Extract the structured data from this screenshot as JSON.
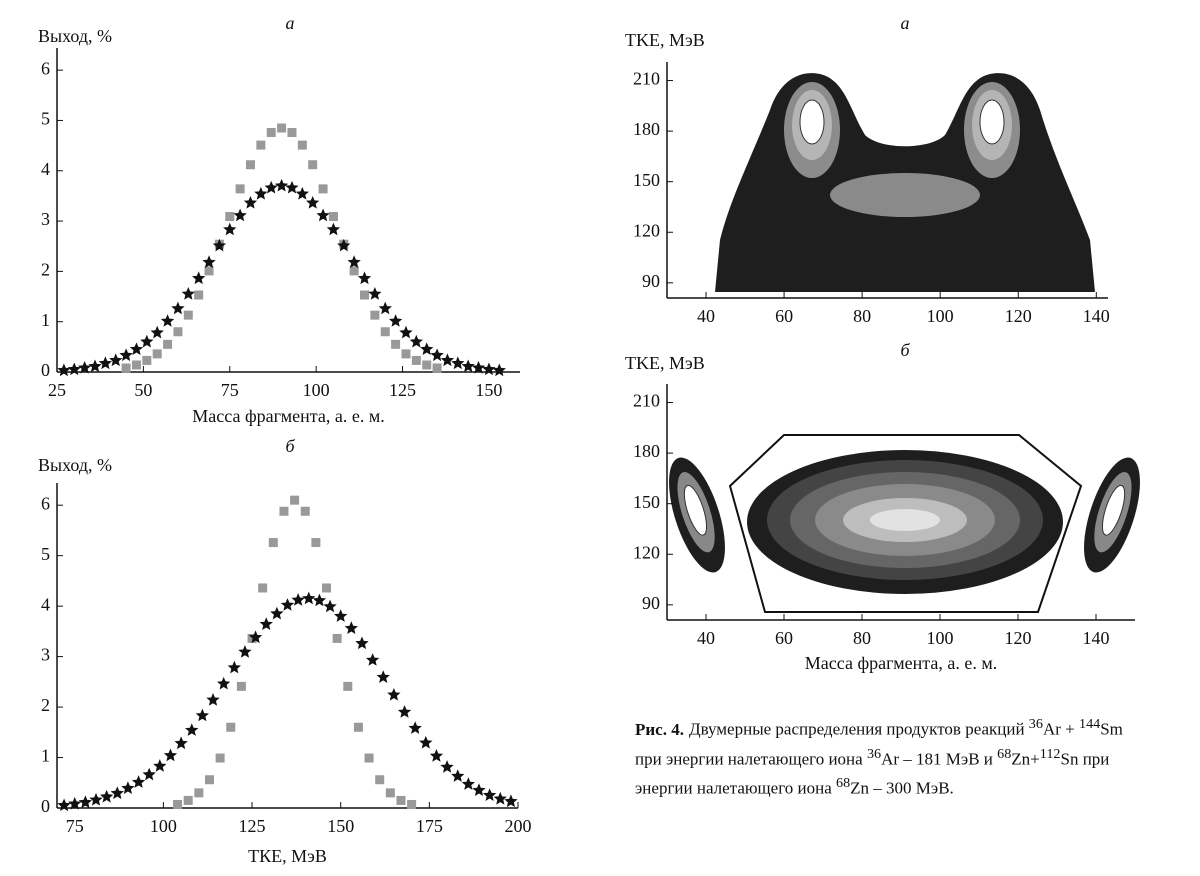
{
  "chart_data": [
    {
      "type": "scatter",
      "title": "а",
      "ylabel": "Выход, %",
      "xlabel": "Масса фрагмента, а. е. м.",
      "xlim": [
        25,
        159
      ],
      "ylim": [
        0,
        6.44
      ],
      "xticks": [
        25,
        50,
        75,
        100,
        125,
        150
      ],
      "yticks": [
        0,
        1,
        2,
        3,
        4,
        5,
        6
      ],
      "series": [
        {
          "marker": "square",
          "color": "#999999",
          "x": [
            45,
            48,
            51,
            54,
            57,
            60,
            63,
            66,
            69,
            72,
            75,
            78,
            81,
            84,
            87,
            90,
            93,
            96,
            99,
            102,
            105,
            108,
            111,
            114,
            117,
            120,
            123,
            126,
            129,
            132,
            135
          ],
          "values": [
            0.08,
            0.14,
            0.23,
            0.36,
            0.55,
            0.8,
            1.13,
            1.53,
            2.01,
            2.54,
            3.09,
            3.64,
            4.12,
            4.51,
            4.76,
            4.85,
            4.76,
            4.51,
            4.12,
            3.64,
            3.09,
            2.54,
            2.01,
            1.53,
            1.13,
            0.8,
            0.55,
            0.36,
            0.23,
            0.14,
            0.08
          ]
        },
        {
          "marker": "star",
          "color": "#111111",
          "x": [
            27,
            30,
            33,
            36,
            39,
            42,
            45,
            48,
            51,
            54,
            57,
            60,
            63,
            66,
            69,
            72,
            75,
            78,
            81,
            84,
            87,
            90,
            93,
            96,
            99,
            102,
            105,
            108,
            111,
            114,
            117,
            120,
            123,
            126,
            129,
            132,
            135,
            138,
            141,
            144,
            147,
            150,
            153
          ],
          "values": [
            0.03,
            0.05,
            0.08,
            0.11,
            0.17,
            0.23,
            0.33,
            0.45,
            0.6,
            0.78,
            1.01,
            1.26,
            1.55,
            1.86,
            2.18,
            2.51,
            2.83,
            3.11,
            3.36,
            3.54,
            3.66,
            3.7,
            3.66,
            3.54,
            3.36,
            3.11,
            2.83,
            2.51,
            2.18,
            1.86,
            1.55,
            1.26,
            1.01,
            0.78,
            0.6,
            0.45,
            0.33,
            0.23,
            0.17,
            0.11,
            0.08,
            0.05,
            0.03
          ]
        }
      ]
    },
    {
      "type": "scatter",
      "title": "б",
      "ylabel": "Выход, %",
      "xlabel": "ТКЕ, МэВ",
      "xlim": [
        70,
        200
      ],
      "ylim": [
        0,
        6.44
      ],
      "xticks": [
        75,
        100,
        125,
        150,
        175,
        200
      ],
      "yticks": [
        0,
        1,
        2,
        3,
        4,
        5,
        6
      ],
      "series": [
        {
          "marker": "square",
          "color": "#999999",
          "x": [
            104,
            107,
            110,
            113,
            116,
            119,
            122,
            125,
            128,
            131,
            134,
            137,
            140,
            143,
            146,
            149,
            152,
            155,
            158,
            161,
            164,
            167,
            170
          ],
          "values": [
            0.07,
            0.15,
            0.3,
            0.56,
            0.99,
            1.6,
            2.41,
            3.36,
            4.36,
            5.26,
            5.88,
            6.1,
            5.88,
            5.26,
            4.36,
            3.36,
            2.41,
            1.6,
            0.99,
            0.56,
            0.3,
            0.15,
            0.07
          ]
        },
        {
          "marker": "star",
          "color": "#111111",
          "x": [
            72,
            75,
            78,
            81,
            84,
            87,
            90,
            93,
            96,
            99,
            102,
            105,
            108,
            111,
            114,
            117,
            120,
            123,
            126,
            129,
            132,
            135,
            138,
            141,
            144,
            147,
            150,
            153,
            156,
            159,
            162,
            165,
            168,
            171,
            174,
            177,
            180,
            183,
            186,
            189,
            192,
            195,
            198
          ],
          "values": [
            0.05,
            0.08,
            0.11,
            0.16,
            0.22,
            0.29,
            0.39,
            0.51,
            0.66,
            0.83,
            1.04,
            1.28,
            1.54,
            1.83,
            2.14,
            2.46,
            2.78,
            3.09,
            3.38,
            3.64,
            3.85,
            4.02,
            4.12,
            4.15,
            4.11,
            3.99,
            3.8,
            3.56,
            3.26,
            2.93,
            2.59,
            2.24,
            1.9,
            1.58,
            1.29,
            1.03,
            0.81,
            0.63,
            0.47,
            0.35,
            0.25,
            0.18,
            0.13
          ]
        }
      ]
    },
    {
      "type": "contour",
      "title": "а",
      "ylabel": "TKE, МэВ",
      "xlim": [
        30,
        143
      ],
      "ylim": [
        81,
        221
      ],
      "xticks": [
        40,
        60,
        80,
        100,
        120,
        140
      ],
      "yticks": [
        90,
        120,
        150,
        180,
        210
      ]
    },
    {
      "type": "contour",
      "title": "б",
      "ylabel": "TKE, МэВ",
      "xlabel": "Масса фрагмента, а. е. м.",
      "xlim": [
        30,
        150
      ],
      "ylim": [
        81,
        221
      ],
      "xticks": [
        40,
        60,
        80,
        100,
        120,
        140
      ],
      "yticks": [
        90,
        120,
        150,
        180,
        210
      ]
    }
  ],
  "caption": {
    "label": "Рис. 4.",
    "parts": [
      {
        "text": "Двумерные распределения продуктов реакций "
      },
      {
        "sup": "36"
      },
      {
        "text": "Ar + "
      },
      {
        "sup": "144"
      },
      {
        "text": "Sm при энергии налетающего иона "
      },
      {
        "sup": "36"
      },
      {
        "text": "Ar – 181 МэВ и "
      },
      {
        "sup": "68"
      },
      {
        "text": "Zn+"
      },
      {
        "sup": "112"
      },
      {
        "text": "Sn при энергии налетающего иона "
      },
      {
        "sup": "68"
      },
      {
        "text": "Zn – 300 МэВ."
      }
    ]
  }
}
